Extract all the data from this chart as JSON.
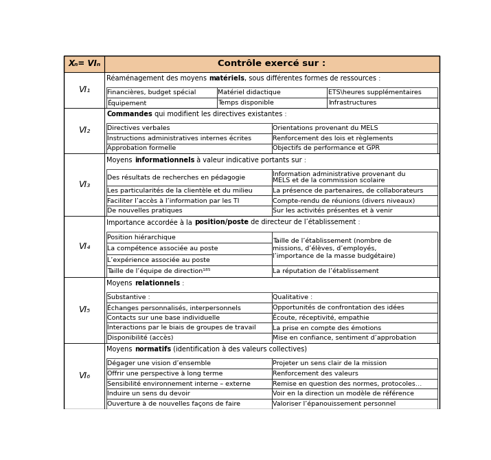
{
  "header_col1": "Xₙ= VIₙ",
  "header_col2": "Contrôle exercé sur :",
  "header_bg": "#f0c8a0",
  "font_size": 7.2,
  "rows": [
    {
      "vi": "VI₁",
      "intro_pre": "Réaménagement des moyens ",
      "intro_bold": "matériels",
      "intro_post": ", sous différentes formes de ressources :",
      "subtable_cols": 3,
      "subtable_cells": [
        [
          "Financières, budget spécial",
          "Matériel didactique",
          "ETS\\heures supplémentaires"
        ],
        [
          "Équipement",
          "Temps disponible",
          "Infrastructures"
        ]
      ]
    },
    {
      "vi": "VI₂",
      "intro_pre": "",
      "intro_bold": "Commandes",
      "intro_post": " qui modifient les directives existantes :",
      "subtable_cols": 2,
      "subtable_cells": [
        [
          "Directives verbales",
          "Orientations provenant du MELS"
        ],
        [
          "Instructions administratives internes écrites",
          "Renforcement des lois et règlements"
        ],
        [
          "Approbation formelle",
          "Objectifs de performance et GPR"
        ]
      ]
    },
    {
      "vi": "VI₃",
      "intro_pre": "Moyens ",
      "intro_bold": "informationnels",
      "intro_post": " à valeur indicative portants sur :",
      "subtable_cols": 2,
      "subtable_cells": [
        [
          "Des résultats de recherches en pédagogie",
          "Information administrative provenant du\nMELS et de la commission scolaire"
        ],
        [
          "Les particularités de la clientèle et du milieu",
          "La présence de partenaires, de collaborateurs"
        ],
        [
          "Faciliter l’accès à l’information par les TI",
          "Compte-rendu de réunions (divers niveaux)"
        ],
        [
          "De nouvelles pratiques",
          "Sur les activités présentes et à venir"
        ]
      ]
    },
    {
      "vi": "VI₄",
      "intro_pre": "Importance accordée à la ",
      "intro_bold": "position/poste",
      "intro_post": " de directeur de l’établissement :",
      "subtable_cols": 2,
      "subtable_cells": [
        [
          "Position hiérarchique",
          "Taille de l’établissement (nombre de\nmissions, d’élèves, d’employés,\nl’importance de la masse budgétaire)"
        ],
        [
          "La compétence associée au poste",
          ""
        ],
        [
          "L’expérience associée au poste",
          ""
        ],
        [
          "Taille de l’équipe de direction¹⁸⁵",
          "La réputation de l’établissement"
        ]
      ]
    },
    {
      "vi": "VI₅",
      "intro_pre": "Moyens ",
      "intro_bold": "relationnels",
      "intro_post": " :",
      "subtable_cols": 2,
      "subtable_cells": [
        [
          "Substantive :",
          "Qualitative :"
        ],
        [
          "Échanges personnalisés, interpersonnels",
          "Opportunités de confrontation des idées"
        ],
        [
          "Contacts sur une base individuelle",
          "Écoute, réceptivité, empathie"
        ],
        [
          "Interactions par le biais de groupes de travail",
          "La prise en compte des émotions"
        ],
        [
          "Disponibilité (accès)",
          "Mise en confiance, sentiment d’approbation"
        ]
      ]
    },
    {
      "vi": "VI₆",
      "intro_pre": "Moyens ",
      "intro_bold": "normatifs",
      "intro_post": " (identification à des valeurs collectives)",
      "subtable_cols": 2,
      "subtable_cells": [
        [
          "Dégager une vision d’ensemble",
          "Projeter un sens clair de la mission"
        ],
        [
          "Offrir une perspective à long terme",
          "Renforcement des valeurs"
        ],
        [
          "Sensibilité environnement interne – externe",
          "Remise en question des normes, protocoles…"
        ],
        [
          "Induire un sens du devoir",
          "Voir en la direction un modèle de référence"
        ],
        [
          "Ouverture à de nouvelles façons de faire",
          "Valoriser l’épanouissement personnel"
        ]
      ]
    }
  ]
}
